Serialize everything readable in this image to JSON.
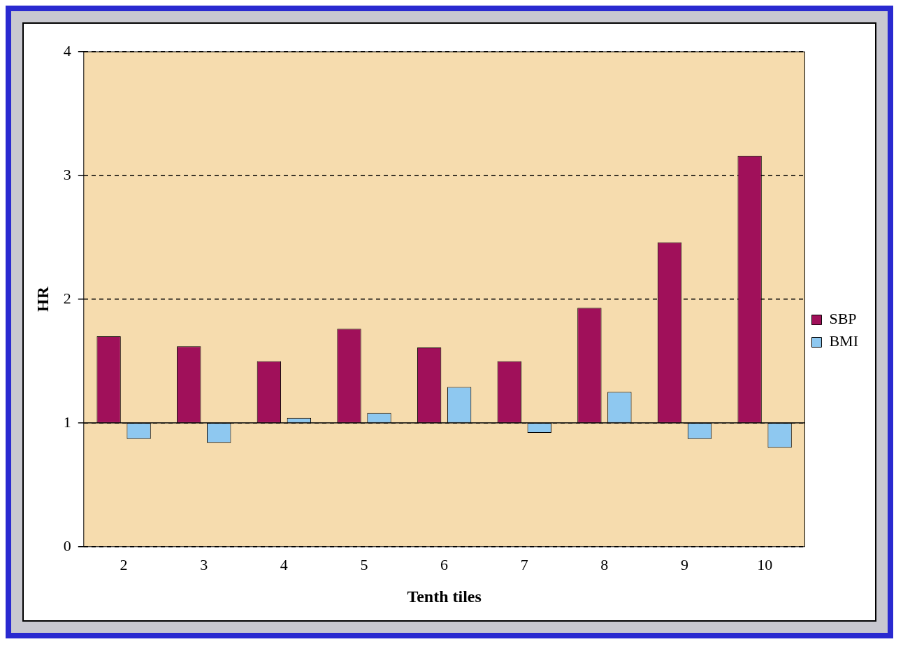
{
  "chart_data": {
    "type": "bar",
    "xlabel": "Tenth tiles",
    "ylabel": "HR",
    "categories": [
      "2",
      "3",
      "4",
      "5",
      "6",
      "7",
      "8",
      "9",
      "10"
    ],
    "series": [
      {
        "name": "SBP",
        "color": "#a0105a",
        "base": [
          1,
          1,
          1,
          1,
          1,
          1,
          1,
          1,
          1
        ],
        "values": [
          0.7,
          0.62,
          0.5,
          0.76,
          0.61,
          0.5,
          0.93,
          1.46,
          2.16
        ]
      },
      {
        "name": "BMI",
        "color": "#8ec8f0",
        "base": [
          1,
          1,
          1,
          1,
          1,
          1,
          1,
          1,
          1
        ],
        "values": [
          -0.13,
          -0.16,
          0.04,
          0.08,
          0.29,
          -0.08,
          0.25,
          -0.13,
          -0.2
        ]
      }
    ],
    "ylim": [
      0,
      4
    ],
    "yticks": [
      0,
      1,
      2,
      3,
      4
    ],
    "grid": "y",
    "legend": "right",
    "ref_lines": [
      {
        "axis": "y",
        "value": 1,
        "color": "#000000"
      }
    ]
  }
}
